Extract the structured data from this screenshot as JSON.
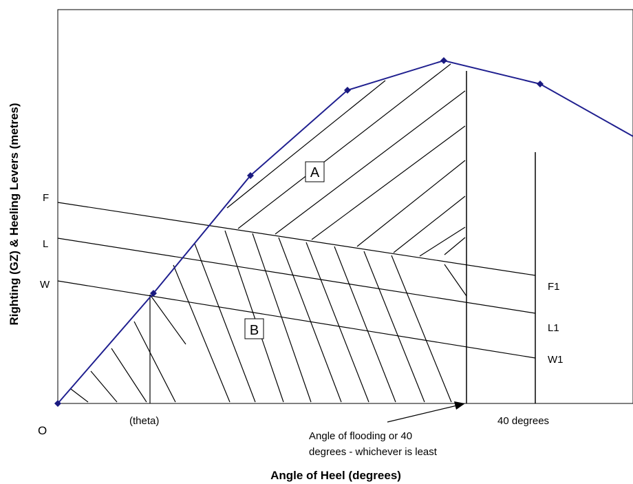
{
  "axes": {
    "y_title": "Righting (GZ) & Heeling Levers (metres)",
    "x_title": "Angle of Heel (degrees)",
    "origin_label": "O"
  },
  "levers_left": {
    "f": "F",
    "l": "L",
    "w": "W"
  },
  "levers_right": {
    "f": "F1",
    "l": "L1",
    "w": "W1"
  },
  "regions": {
    "a": "A",
    "b": "B"
  },
  "x_labels": {
    "theta": "(theta)",
    "forty": "40 degrees",
    "flooding_line1": "Angle of flooding or 40",
    "flooding_line2": "degrees - whichever is least"
  },
  "colors": {
    "curve": "#1f1f8f",
    "marker": "#1a1a80",
    "lines": "#000000"
  }
}
